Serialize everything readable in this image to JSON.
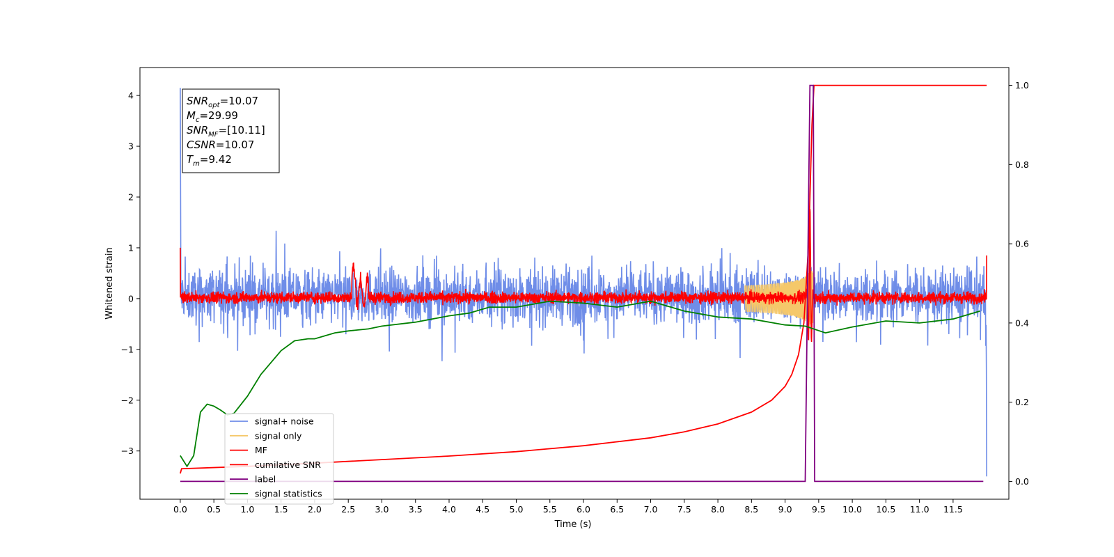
{
  "chart_data": {
    "type": "line",
    "title": "",
    "xlabel": "Time (s)",
    "ylabel": "Whitened strain",
    "y2label": "",
    "xlim": [
      -0.6,
      12.33
    ],
    "ylim": [
      -3.95,
      4.55
    ],
    "y2lim": [
      -0.045,
      1.045
    ],
    "x_ticks": [
      0.0,
      0.5,
      1.0,
      1.5,
      2.0,
      2.5,
      3.0,
      3.5,
      4.0,
      4.5,
      5.0,
      5.5,
      6.0,
      6.5,
      7.0,
      7.5,
      8.0,
      8.5,
      9.0,
      9.5,
      10.0,
      10.5,
      11.0,
      11.5
    ],
    "x_tick_labels": [
      "0.0",
      "0.5",
      "1.0",
      "1.5",
      "2.0",
      "2.5",
      "3.0",
      "3.5",
      "4.0",
      "4.5",
      "5.0",
      "5.5",
      "6.0",
      "6.5",
      "7.0",
      "7.5",
      "8.0",
      "8.5",
      "9.0",
      "9.5",
      "10.0",
      "10.5",
      "11.0",
      "11.5"
    ],
    "y_ticks": [
      -3,
      -2,
      -1,
      0,
      1,
      2,
      3,
      4
    ],
    "y_tick_labels": [
      "−3",
      "−2",
      "−1",
      "0",
      "1",
      "2",
      "3",
      "4"
    ],
    "y2_ticks": [
      0.0,
      0.2,
      0.4,
      0.6,
      0.8,
      1.0
    ],
    "y2_tick_labels": [
      "0.0",
      "0.2",
      "0.4",
      "0.6",
      "0.8",
      "1.0"
    ],
    "grid": false,
    "legend_position": "lower-left",
    "info_box": {
      "lines": [
        {
          "main": "SNR",
          "sub": "opt",
          "value": "=10.07"
        },
        {
          "main": "M",
          "sub": "c",
          "value": "=29.99"
        },
        {
          "main": "SNR",
          "sub": "MF",
          "value": "=[10.11]"
        },
        {
          "main": "CSNR",
          "sub": "",
          "value": "=10.07"
        },
        {
          "main": "T",
          "sub": "m",
          "value": "=9.42"
        }
      ]
    },
    "series": [
      {
        "name": "signal+ noise",
        "color": "#6f8de8",
        "axis": "left",
        "kind": "noise",
        "x_range": [
          0.0,
          12.0
        ],
        "band": [
          -0.55,
          0.65
        ],
        "spike_start": 4.15,
        "spike_end": -3.5
      },
      {
        "name": "signal only",
        "color": "#f5c86a",
        "axis": "left",
        "kind": "chirp",
        "merger_time": 9.42,
        "peak_amplitude": 0.55
      },
      {
        "name": "MF",
        "color": "#ff0000",
        "axis": "left",
        "kind": "noise",
        "x_range": [
          0.0,
          12.0
        ],
        "band": [
          -0.12,
          0.16
        ],
        "peak_at": 9.37,
        "peak_value": 1.8
      },
      {
        "name": "cumilative SNR",
        "color": "#ff0000",
        "axis": "right",
        "x": [
          0.0,
          0.02,
          1.0,
          2.0,
          3.0,
          4.0,
          5.0,
          6.0,
          7.0,
          7.5,
          8.0,
          8.5,
          8.8,
          9.0,
          9.1,
          9.2,
          9.28,
          9.35,
          9.4,
          9.43,
          9.5,
          10.0,
          11.0,
          12.0
        ],
        "y": [
          0.02,
          0.032,
          0.038,
          0.046,
          0.055,
          0.064,
          0.075,
          0.09,
          0.11,
          0.125,
          0.145,
          0.175,
          0.205,
          0.24,
          0.27,
          0.32,
          0.4,
          0.6,
          0.9,
          1.0,
          1.0,
          1.0,
          1.0,
          1.0
        ]
      },
      {
        "name": "label",
        "color": "#800080",
        "axis": "right",
        "x": [
          0.0,
          9.3,
          9.37,
          9.42,
          9.44,
          11.95
        ],
        "y": [
          0.0,
          0.0,
          1.0,
          1.0,
          0.0,
          0.0
        ]
      },
      {
        "name": "signal statistics",
        "color": "#008000",
        "axis": "right",
        "x": [
          0.0,
          0.1,
          0.2,
          0.3,
          0.4,
          0.5,
          0.6,
          0.7,
          0.8,
          1.0,
          1.2,
          1.5,
          1.7,
          1.9,
          2.0,
          2.3,
          2.5,
          2.8,
          3.0,
          3.5,
          4.0,
          4.3,
          4.6,
          5.0,
          5.5,
          6.0,
          6.5,
          7.0,
          7.5,
          8.0,
          8.5,
          9.0,
          9.3,
          9.6,
          10.0,
          10.5,
          11.0,
          11.5,
          11.9
        ],
        "y": [
          0.065,
          0.038,
          0.065,
          0.175,
          0.195,
          0.19,
          0.18,
          0.168,
          0.172,
          0.215,
          0.27,
          0.33,
          0.355,
          0.36,
          0.36,
          0.375,
          0.38,
          0.385,
          0.392,
          0.402,
          0.418,
          0.425,
          0.44,
          0.44,
          0.455,
          0.45,
          0.44,
          0.455,
          0.43,
          0.415,
          0.41,
          0.395,
          0.392,
          0.375,
          0.39,
          0.405,
          0.4,
          0.41,
          0.43
        ]
      }
    ]
  }
}
